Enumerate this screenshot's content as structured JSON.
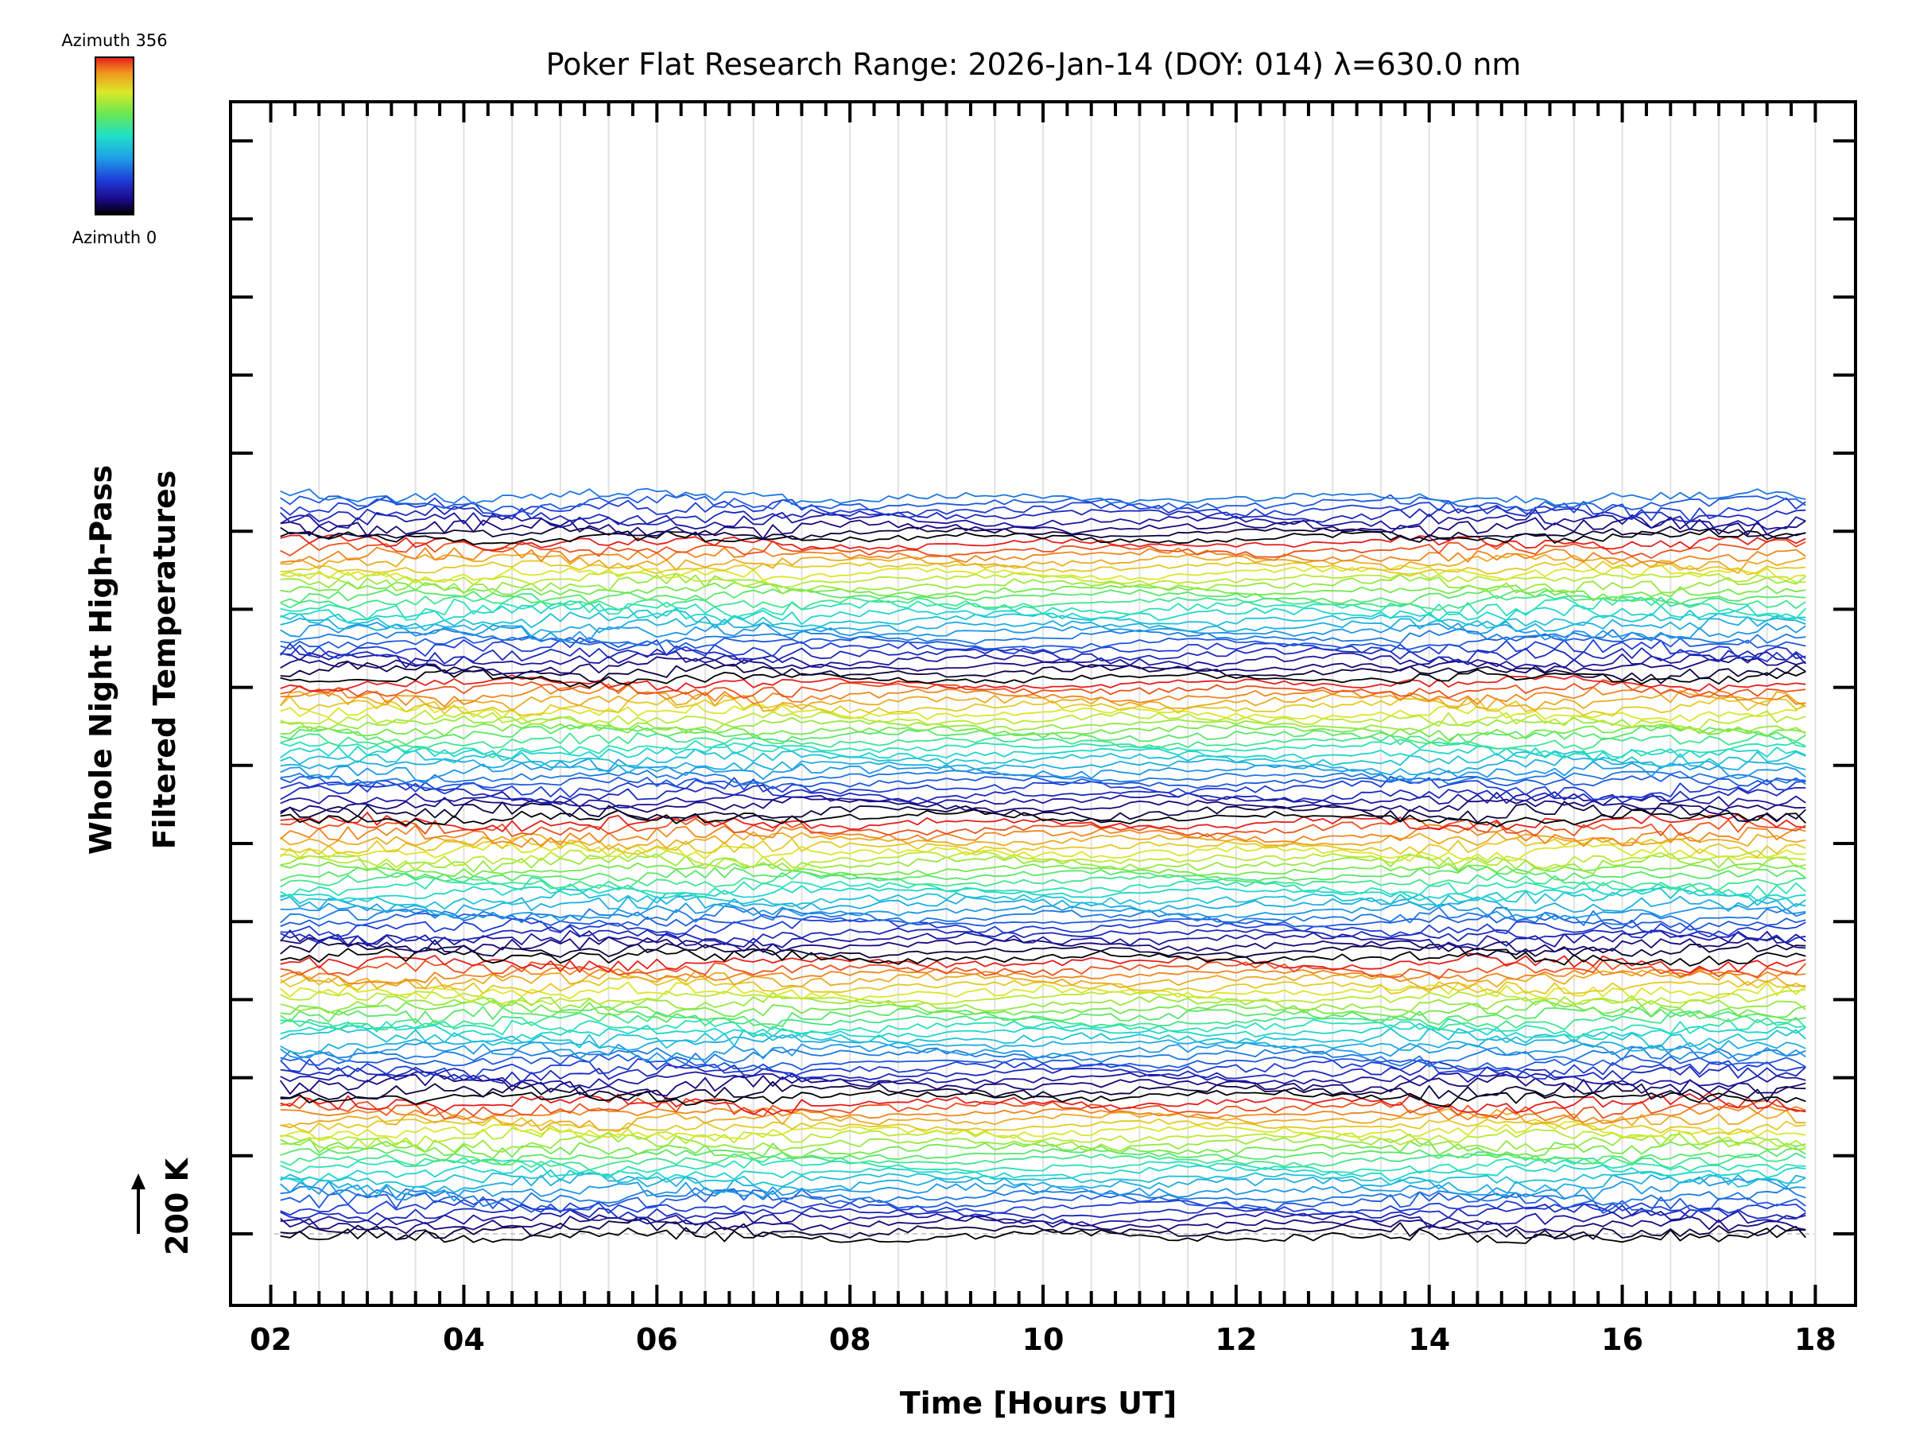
{
  "chart_data": {
    "type": "line",
    "title": "Poker Flat Research Range: 2026-Jan-14 (DOY: 014) λ=630.0 nm",
    "xlabel": "Time [Hours UT]",
    "ylabel_line1": "Whole Night High-Pass",
    "ylabel_line2": "Filtered Temperatures",
    "scale_label": "200 K",
    "x_ticks": [
      "02",
      "04",
      "06",
      "08",
      "10",
      "12",
      "14",
      "16",
      "18"
    ],
    "xlim": [
      1.6,
      18.4
    ],
    "colorbar": {
      "top_label": "Azimuth 356",
      "bottom_label": "Azimuth 0",
      "min": 0,
      "max": 356
    },
    "series_count": 128,
    "series_offset_K": 40,
    "baseline_series_K": 200,
    "time_start_h": 2.1,
    "time_end_h": 17.95,
    "time_step_h": 0.1,
    "note": "Stacked high-pass filtered temperature traces, one per azimuth sample, offset vertically and coloured by azimuth."
  }
}
